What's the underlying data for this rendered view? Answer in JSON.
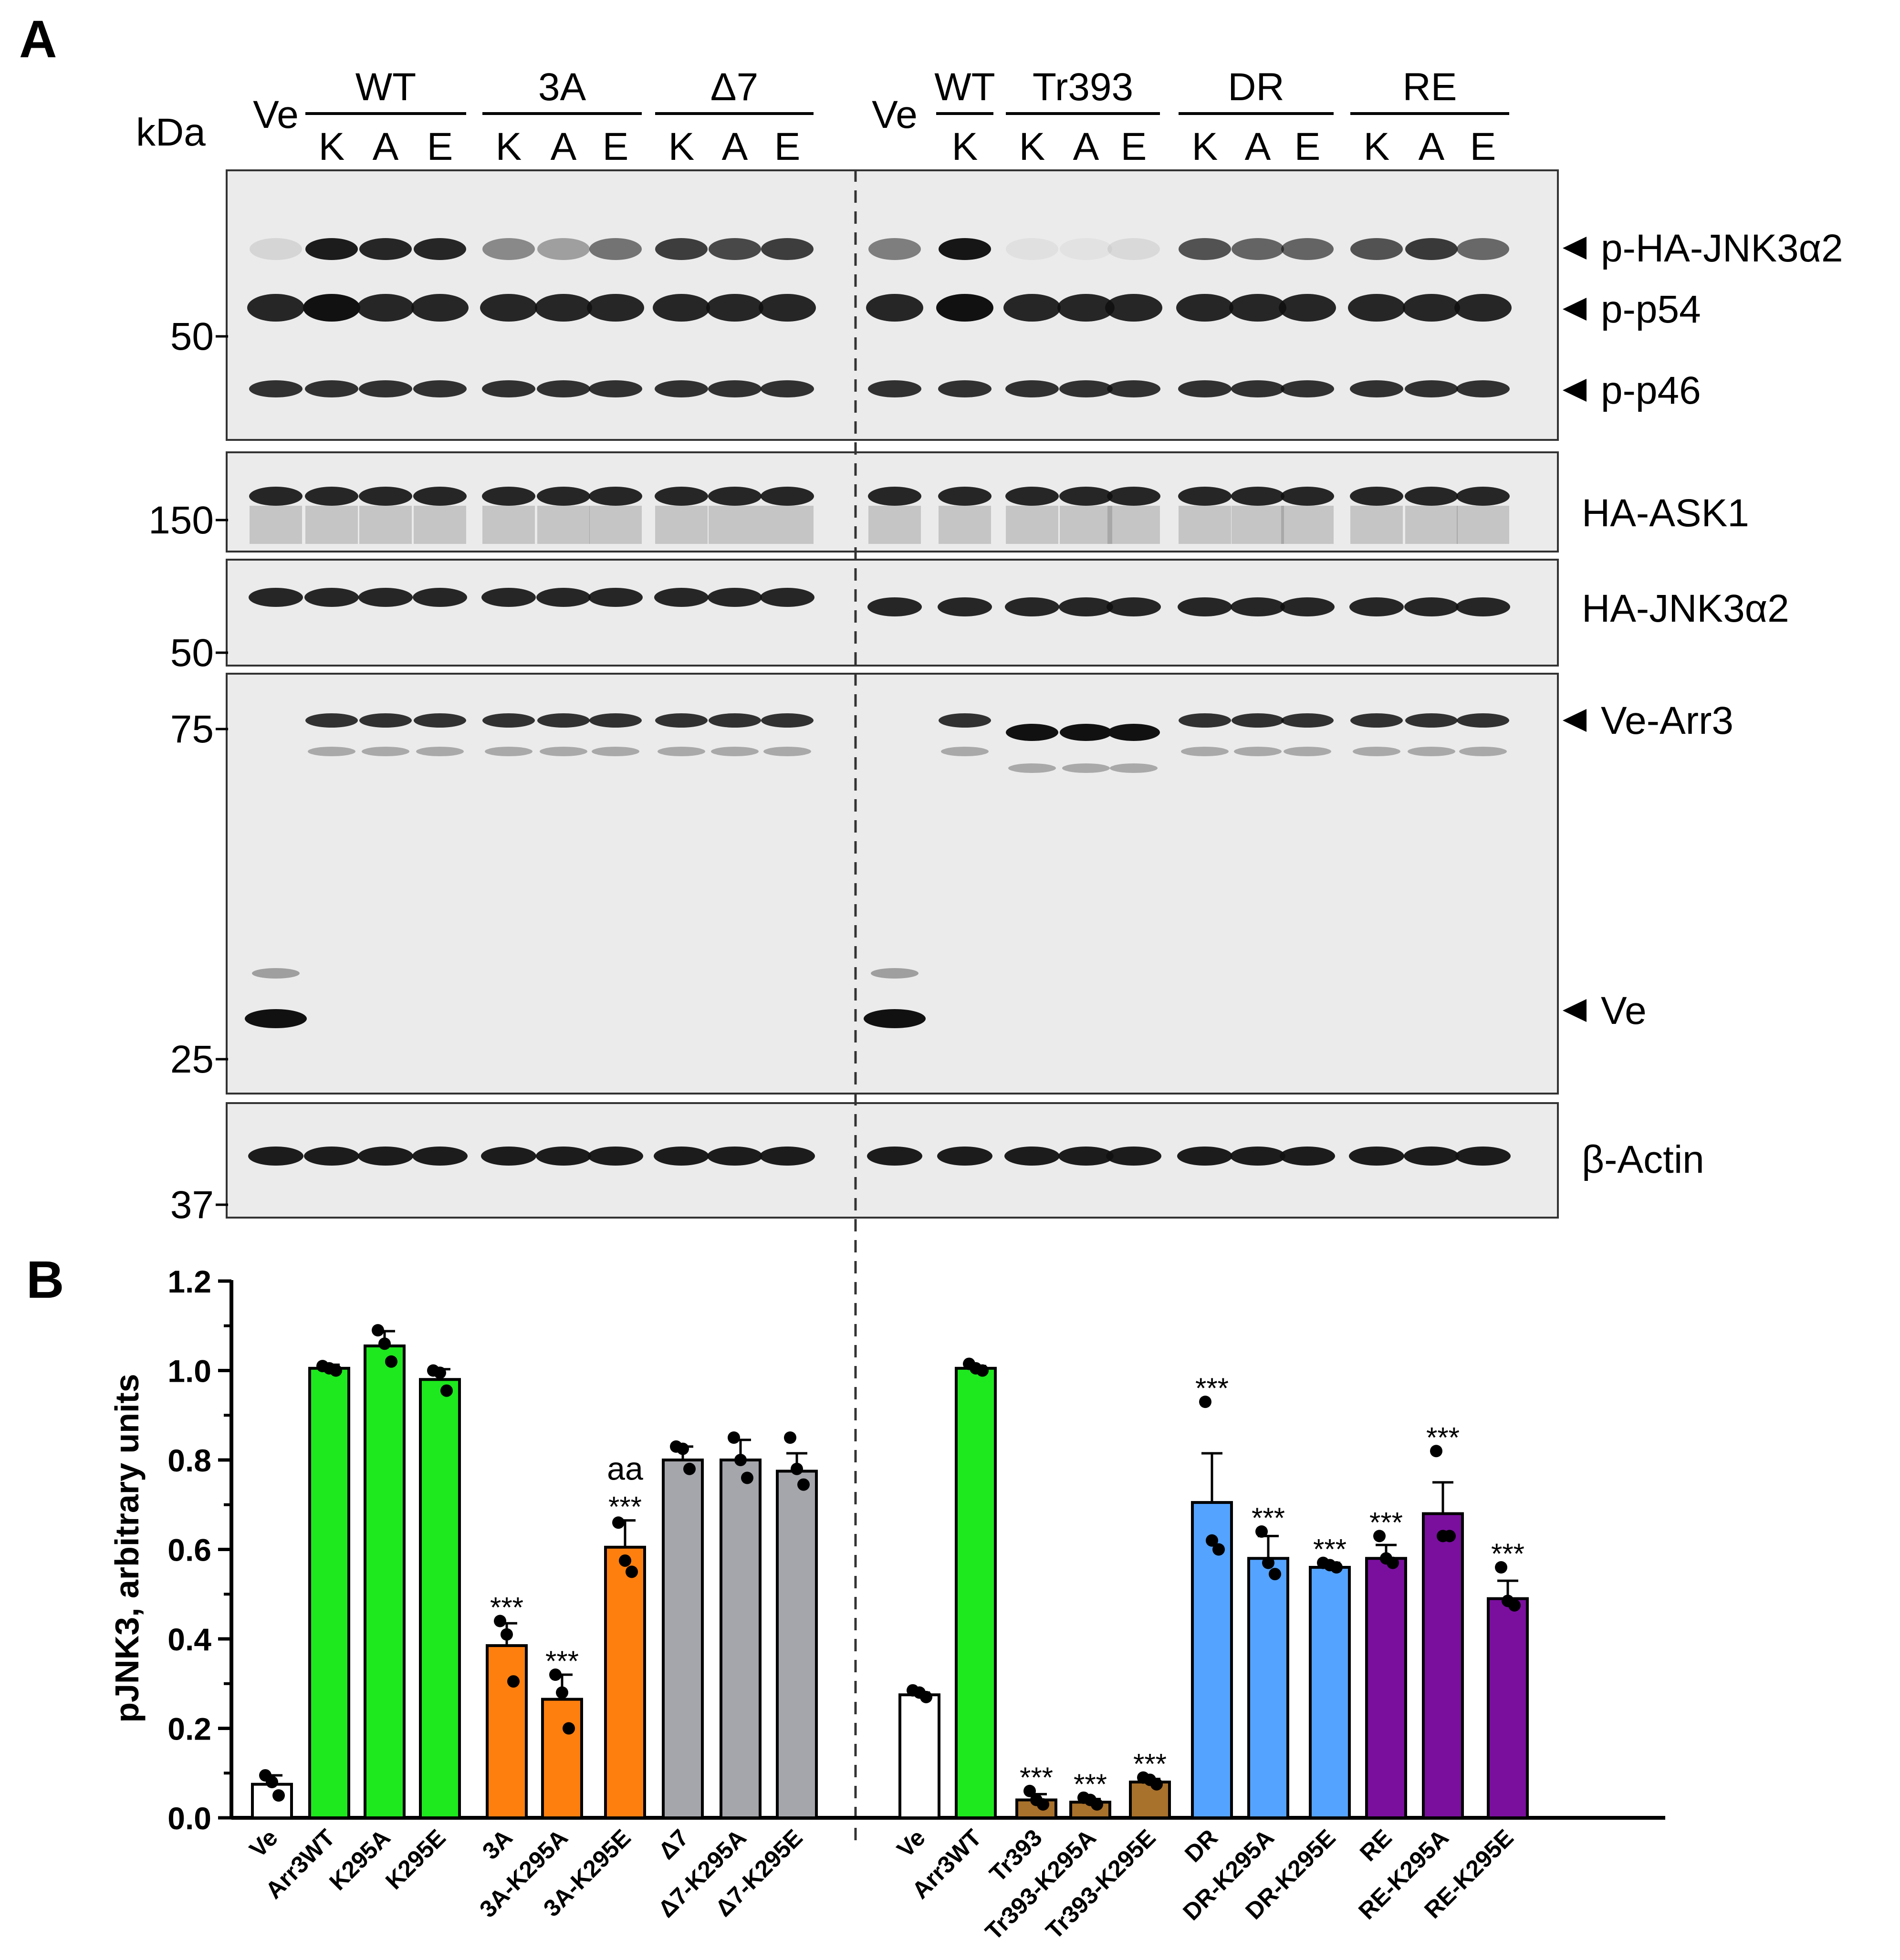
{
  "panel_a": {
    "label": "A",
    "kda_label": "kDa",
    "left_groups": [
      {
        "label": "Ve",
        "lanes": 1,
        "underline": false
      },
      {
        "label": "WT",
        "lanes": 3,
        "underline": true
      },
      {
        "label": "3A",
        "lanes": 3,
        "underline": true
      },
      {
        "label": "Δ7",
        "lanes": 3,
        "underline": true
      }
    ],
    "right_groups": [
      {
        "label": "Ve",
        "lanes": 1,
        "underline": false
      },
      {
        "label": "WT",
        "lanes": 1,
        "underline": true
      },
      {
        "label": "Tr393",
        "lanes": 3,
        "underline": true
      },
      {
        "label": "DR",
        "lanes": 3,
        "underline": true
      },
      {
        "label": "RE",
        "lanes": 3,
        "underline": true
      }
    ],
    "left_lane_labels": [
      "",
      "K",
      "A",
      "E",
      "K",
      "A",
      "E",
      "K",
      "A",
      "E"
    ],
    "right_lane_labels": [
      "",
      "K",
      "K",
      "A",
      "E",
      "K",
      "A",
      "E",
      "K",
      "A",
      "E"
    ],
    "blots": [
      {
        "id": "pjnk",
        "markers": [
          "50"
        ],
        "labels": [
          "p-HA-JNK3α2",
          "p-p54",
          "p-p46"
        ]
      },
      {
        "id": "ask1",
        "markers": [
          "150"
        ],
        "labels": [
          "HA-ASK1"
        ]
      },
      {
        "id": "jnk",
        "markers": [
          "50"
        ],
        "labels": [
          "HA-JNK3α2"
        ]
      },
      {
        "id": "arr",
        "markers": [
          "75",
          "25"
        ],
        "labels": [
          "Ve-Arr3",
          "Ve"
        ]
      },
      {
        "id": "actin",
        "markers": [
          "37"
        ],
        "labels": [
          "β-Actin"
        ]
      }
    ]
  },
  "panel_b": {
    "label": "B",
    "chart_data": {
      "type": "bar",
      "ylabel": "pJNK3, arbitrary units",
      "xlabel": "",
      "ylim": [
        0,
        1.2
      ],
      "yticks": [
        "0.0",
        "0.2",
        "0.4",
        "0.6",
        "0.8",
        "1.0",
        "1.2"
      ],
      "groups": [
        {
          "categories": [
            "Ve",
            "Arr3WT",
            "K295A",
            "K295E",
            "3A",
            "3A-K295A",
            "3A-K295E",
            "Δ7",
            "Δ7-K295A",
            "Δ7-K295E"
          ],
          "values": [
            0.075,
            1.005,
            1.055,
            0.98,
            0.385,
            0.265,
            0.605,
            0.8,
            0.8,
            0.775
          ],
          "errors": [
            0.02,
            0.008,
            0.033,
            0.023,
            0.05,
            0.055,
            0.06,
            0.03,
            0.045,
            0.04
          ],
          "points": [
            [
              0.095,
              0.08,
              0.05
            ],
            [
              1.01,
              1.005,
              1.0
            ],
            [
              1.09,
              1.06,
              1.02
            ],
            [
              1.0,
              0.995,
              0.955
            ],
            [
              0.44,
              0.41,
              0.305
            ],
            [
              0.32,
              0.28,
              0.2
            ],
            [
              0.66,
              0.575,
              0.55
            ],
            [
              0.83,
              0.825,
              0.78
            ],
            [
              0.85,
              0.8,
              0.76
            ],
            [
              0.85,
              0.78,
              0.745
            ]
          ],
          "colors": [
            "#ffffff",
            "#1ee81e",
            "#1ee81e",
            "#1ee81e",
            "#ff7f0e",
            "#ff7f0e",
            "#ff7f0e",
            "#a5a6ab",
            "#a5a6ab",
            "#a5a6ab"
          ],
          "annotations": [
            "",
            "",
            "",
            "",
            "***",
            "***",
            "aa\n***",
            "",
            "",
            ""
          ]
        },
        {
          "categories": [
            "Ve",
            "Arr3WT",
            "Tr393",
            "Tr393-K295A",
            "Tr393-K295E",
            "DR",
            "DR-K295A",
            "DR-K295E",
            "RE",
            "RE-K295A",
            "RE-K295E"
          ],
          "values": [
            0.275,
            1.005,
            0.04,
            0.035,
            0.08,
            0.705,
            0.58,
            0.56,
            0.58,
            0.68,
            0.49
          ],
          "errors": [
            0.005,
            0.005,
            0.013,
            0.007,
            0.007,
            0.11,
            0.05,
            0.01,
            0.03,
            0.07,
            0.04
          ],
          "points": [
            [
              0.285,
              0.28,
              0.27
            ],
            [
              1.015,
              1.005,
              1.0
            ],
            [
              0.06,
              0.04,
              0.03
            ],
            [
              0.045,
              0.04,
              0.03
            ],
            [
              0.09,
              0.085,
              0.075
            ],
            [
              0.93,
              0.62,
              0.6
            ],
            [
              0.64,
              0.57,
              0.545
            ],
            [
              0.57,
              0.565,
              0.56
            ],
            [
              0.63,
              0.58,
              0.57
            ],
            [
              0.82,
              0.63,
              0.63
            ],
            [
              0.56,
              0.485,
              0.475
            ]
          ],
          "colors": [
            "#ffffff",
            "#1ee81e",
            "#a8712c",
            "#a8712c",
            "#a8712c",
            "#54a3ff",
            "#54a3ff",
            "#54a3ff",
            "#7a0f9e",
            "#7a0f9e",
            "#7a0f9e"
          ],
          "annotations": [
            "",
            "",
            "***",
            "***",
            "***",
            "***",
            "***",
            "***",
            "***",
            "***",
            "***"
          ]
        }
      ]
    }
  }
}
